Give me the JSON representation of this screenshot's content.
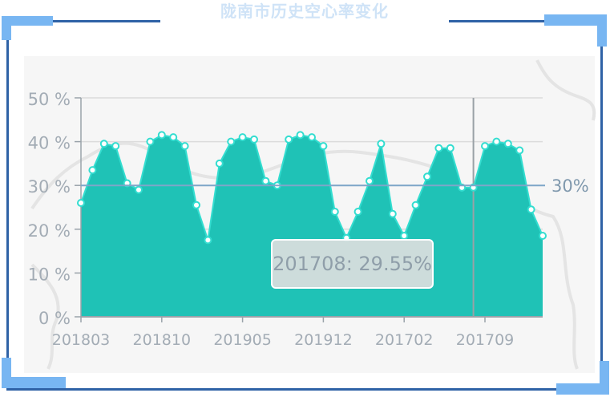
{
  "title": "陇南市历史空心率变化",
  "tooltip_text": "201708: 29.55%",
  "mark_line_label": "30%",
  "colors": {
    "area": "#1fc2b6",
    "line": "#33ddd0",
    "markline": "#7ea6c8",
    "frame": "#2f62a6",
    "corner": "#78b6f2",
    "title": "#cfe3f7"
  },
  "chart_data": {
    "type": "area",
    "title": "陇南市历史空心率变化",
    "ytick_labels": [
      "0 %",
      "10 %",
      "20 %",
      "30 %",
      "40 %",
      "50 %"
    ],
    "ylim": [
      0,
      50
    ],
    "xtick_labels": [
      "201803",
      "201810",
      "201905",
      "201912",
      "201702",
      "201709"
    ],
    "xtick_index": [
      0,
      7,
      14,
      21,
      28,
      35
    ],
    "values": [
      26,
      33.5,
      39.5,
      39,
      30.5,
      29,
      40,
      41.5,
      41,
      39,
      25.5,
      17.5,
      35,
      40,
      41,
      40.5,
      31,
      30,
      40.5,
      41.5,
      41,
      39,
      24,
      18,
      24,
      31,
      39.5,
      23.5,
      18.5,
      25.5,
      32,
      38.5,
      38.5,
      29.5,
      29.55,
      39,
      40,
      39.5,
      38,
      24.5,
      18.5
    ],
    "mark_line": 30,
    "hover_index": 34,
    "grid": true
  }
}
